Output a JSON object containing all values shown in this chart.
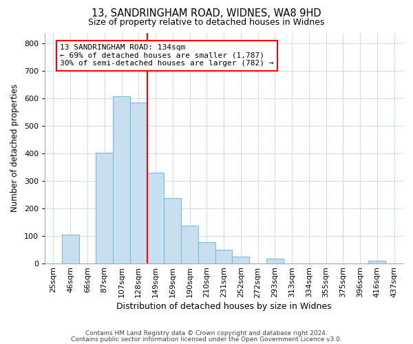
{
  "title1": "13, SANDRINGHAM ROAD, WIDNES, WA8 9HD",
  "title2": "Size of property relative to detached houses in Widnes",
  "xlabel": "Distribution of detached houses by size in Widnes",
  "ylabel": "Number of detached properties",
  "footer1": "Contains HM Land Registry data © Crown copyright and database right 2024.",
  "footer2": "Contains public sector information licensed under the Open Government Licence v3.0.",
  "bin_labels": [
    "25sqm",
    "46sqm",
    "66sqm",
    "87sqm",
    "107sqm",
    "128sqm",
    "149sqm",
    "169sqm",
    "190sqm",
    "210sqm",
    "231sqm",
    "252sqm",
    "272sqm",
    "293sqm",
    "313sqm",
    "334sqm",
    "355sqm",
    "375sqm",
    "396sqm",
    "416sqm",
    "437sqm"
  ],
  "bar_values": [
    0,
    105,
    0,
    403,
    608,
    585,
    330,
    236,
    136,
    76,
    50,
    24,
    0,
    16,
    0,
    0,
    0,
    0,
    0,
    8,
    0
  ],
  "bar_color": "#c8dff0",
  "bar_edge_color": "#7fb8d8",
  "ylim": [
    0,
    840
  ],
  "yticks": [
    0,
    100,
    200,
    300,
    400,
    500,
    600,
    700,
    800
  ],
  "vline_x_index": 5.5,
  "annotation_line1": "13 SANDRINGHAM ROAD: 134sqm",
  "annotation_line2": "← 69% of detached houses are smaller (1,787)",
  "annotation_line3": "30% of semi-detached houses are larger (782) →",
  "annotation_box_color": "white",
  "annotation_box_edge_color": "red",
  "vline_color": "red",
  "background_color": "white",
  "grid_color": "#d0dce8",
  "title1_fontsize": 10.5,
  "title2_fontsize": 9,
  "footer_fontsize": 6.5,
  "xlabel_fontsize": 9,
  "ylabel_fontsize": 8.5,
  "tick_fontsize": 8,
  "ann_fontsize": 8
}
